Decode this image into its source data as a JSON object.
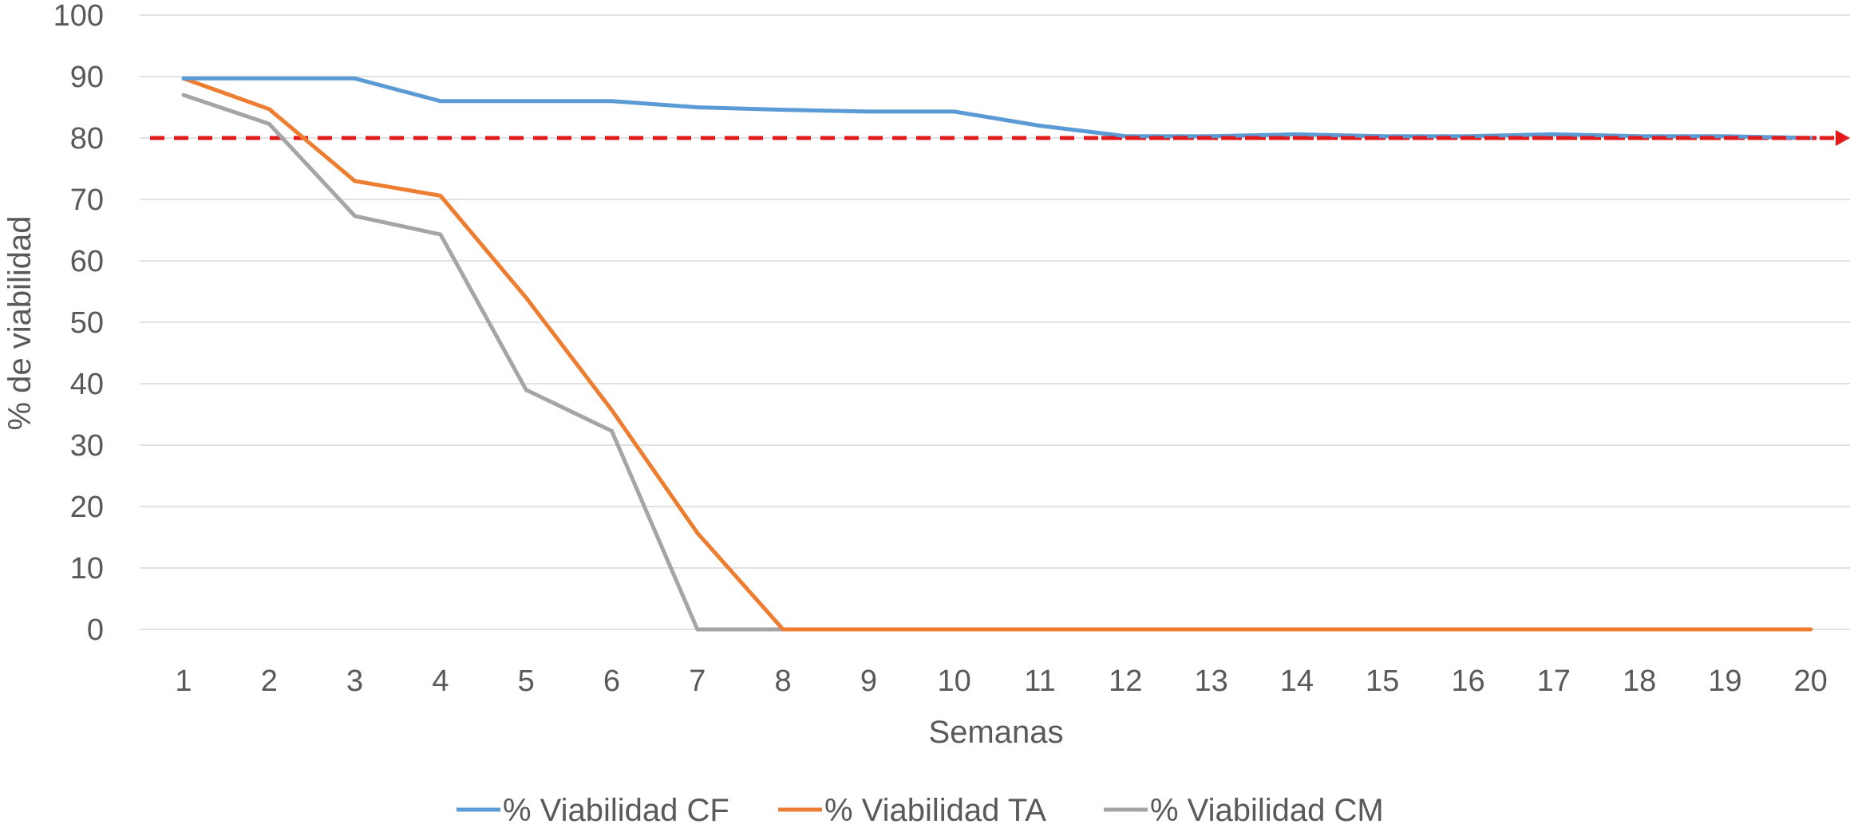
{
  "chart_data": {
    "type": "line",
    "title": "",
    "xlabel": "Semanas",
    "ylabel": "% de viabilidad",
    "x": [
      1,
      2,
      3,
      4,
      5,
      6,
      7,
      8,
      9,
      10,
      11,
      12,
      13,
      14,
      15,
      16,
      17,
      18,
      19,
      20
    ],
    "ylim": [
      0,
      100
    ],
    "yticks": [
      0,
      10,
      20,
      30,
      40,
      50,
      60,
      70,
      80,
      90,
      100
    ],
    "grid": true,
    "legend_position": "bottom",
    "series": [
      {
        "name": "% Viabilidad CF",
        "color": "#5B9BD5",
        "values": [
          89.7,
          89.7,
          89.7,
          86.0,
          86.0,
          86.0,
          85.0,
          84.6,
          84.3,
          84.3,
          82.0,
          80.3,
          80.3,
          80.6,
          80.3,
          80.3,
          80.6,
          80.3,
          80.3,
          80.0
        ]
      },
      {
        "name": "% Viabilidad TA",
        "color": "#ED7D31",
        "values": [
          89.7,
          84.7,
          73.0,
          70.6,
          54.0,
          35.7,
          15.7,
          0,
          0,
          0,
          0,
          0,
          0,
          0,
          0,
          0,
          0,
          0,
          0,
          0
        ]
      },
      {
        "name": "% Viabilidad CM",
        "color": "#A5A5A5",
        "values": [
          87.0,
          82.3,
          67.3,
          64.3,
          39.0,
          32.3,
          0,
          0,
          0,
          0,
          0,
          0,
          0,
          0,
          0,
          0,
          0,
          0,
          0,
          0
        ]
      }
    ],
    "reference_line": {
      "y": 80,
      "color": "#E31A1C",
      "style": "dashed-arrow"
    }
  }
}
